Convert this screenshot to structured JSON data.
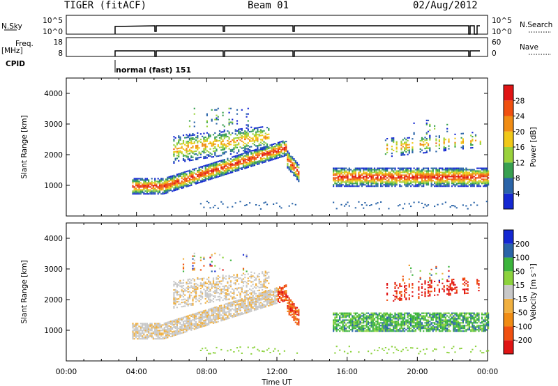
{
  "header": {
    "title": "TIGER (fitACF)",
    "beam": "Beam 01",
    "date": "02/Aug/2012"
  },
  "status_panels": {
    "nsky_label": "N.Sky",
    "nsky_ticks": [
      "10^5",
      "10^0"
    ],
    "nsearch_label": "N.Search",
    "nsearch_ticks": [
      "10^5",
      "10^0"
    ],
    "freq_label": "Freq.",
    "freq_unit": "[MHz]",
    "freq_ticks": [
      "18",
      "8"
    ],
    "nave_label": "Nave",
    "nave_ticks": [
      "60",
      "0"
    ],
    "cpid_label": "CPID",
    "cpid_text": "normal (fast) 151"
  },
  "chart_data": [
    {
      "type": "heatmap",
      "name": "power-panel",
      "ylabel": "Slant Range [km]",
      "ylim": [
        0,
        4500
      ],
      "yticks": [
        1000,
        2000,
        3000,
        4000
      ],
      "xlim_hours": [
        0,
        24
      ],
      "colorbar_label": "Power [dB]",
      "colorbar_ticks": [
        "4",
        "8",
        "12",
        "16",
        "20",
        "24",
        "28"
      ],
      "colors": [
        "#1428d2",
        "#2a64a8",
        "#38a050",
        "#9ad23c",
        "#f0c818",
        "#f08c14",
        "#f05010",
        "#e01414"
      ],
      "data_start_hour": 3.75
    },
    {
      "type": "heatmap",
      "name": "velocity-panel",
      "ylabel": "Slant Range [km]",
      "ylim": [
        0,
        4500
      ],
      "yticks": [
        1000,
        2000,
        3000,
        4000
      ],
      "xlim_hours": [
        0,
        24
      ],
      "xticks": [
        "00:00",
        "04:00",
        "08:00",
        "12:00",
        "16:00",
        "20:00",
        "00:00"
      ],
      "xlabel": "Time UT",
      "colorbar_label": "Velocity [m s⁻¹]",
      "colorbar_ticks": [
        "-200",
        "-100",
        "-50",
        "-15",
        "15",
        "50",
        "100",
        "200"
      ],
      "colors": [
        "#e01414",
        "#f05010",
        "#f08c14",
        "#f0b040",
        "#c8c8c8",
        "#8cd23c",
        "#3cb43c",
        "#2a64a8",
        "#1428d2"
      ]
    }
  ]
}
